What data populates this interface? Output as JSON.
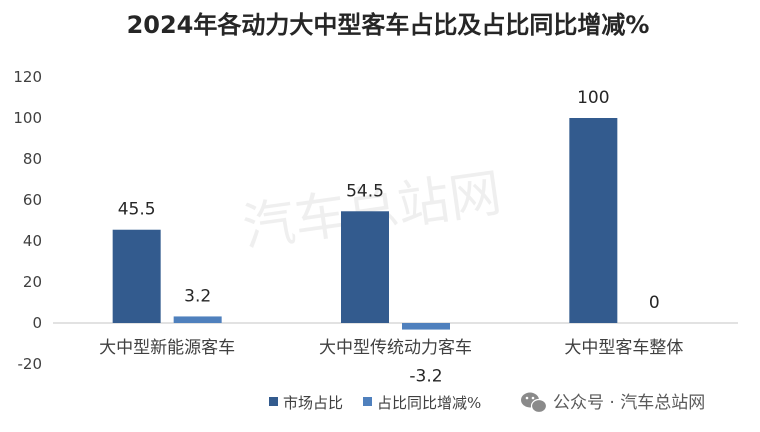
{
  "chart_data": {
    "type": "bar",
    "title": "2024年各动力大中型客车占比及占比同比增减%",
    "categories": [
      "大中型新能源客车",
      "大中型传统动力客车",
      "大中型客车整体"
    ],
    "series": [
      {
        "name": "市场占比",
        "values": [
          45.5,
          54.5,
          100
        ],
        "color": "#335b8e",
        "labels": [
          "45.5",
          "54.5",
          "100"
        ]
      },
      {
        "name": "占比同比增减%",
        "values": [
          3.2,
          -3.2,
          0
        ],
        "color": "#4f80bd",
        "labels": [
          "3.2",
          "-3.2",
          "0"
        ]
      }
    ],
    "ylim": [
      -20,
      120
    ],
    "yticks": [
      -20,
      0,
      20,
      40,
      60,
      80,
      100,
      120
    ],
    "xlabel": "",
    "ylabel": "",
    "grid": false,
    "legend": "bottom",
    "axis_color": "#d9d9d9"
  },
  "watermark": "汽车总站网",
  "wechat": {
    "icon": "wechat-icon",
    "text": "公众号 · 汽车总站网"
  }
}
